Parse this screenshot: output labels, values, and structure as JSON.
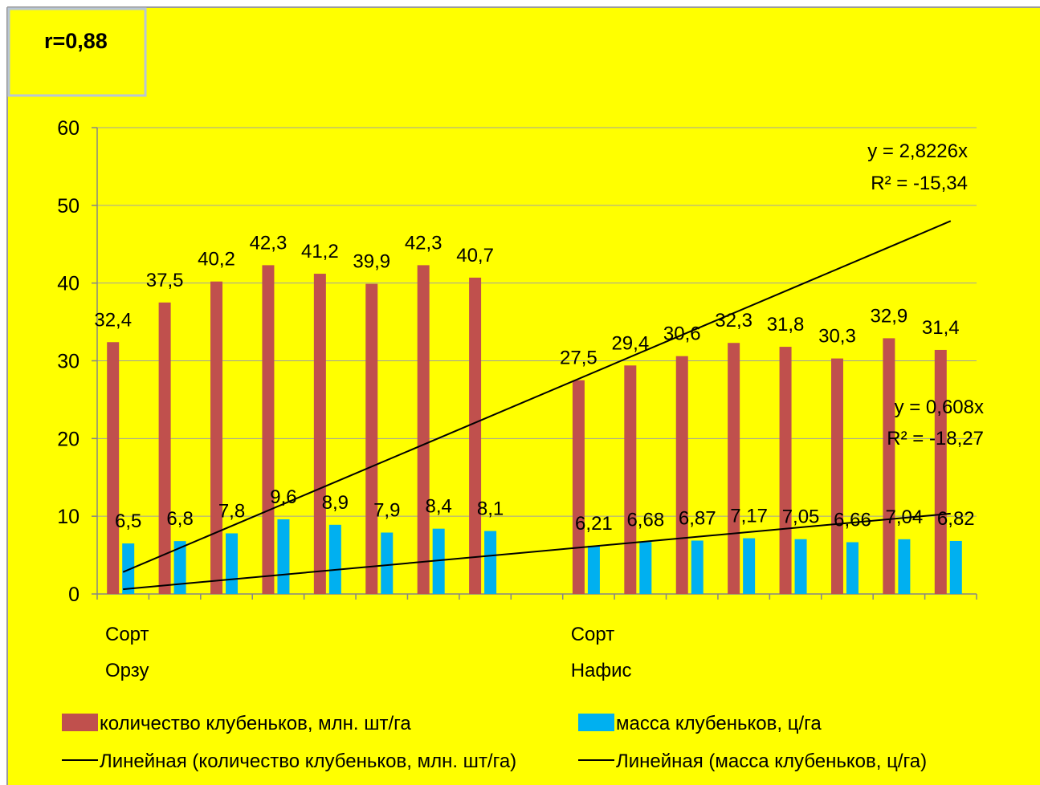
{
  "chart_data": {
    "type": "bar",
    "title": "",
    "corner_box_text": "r=0,88",
    "categories": [
      "",
      "",
      "",
      "",
      "",
      "",
      "",
      "",
      "",
      "",
      "",
      "",
      "",
      "",
      "",
      "",
      ""
    ],
    "group_labels": [
      {
        "line1": "Сорт",
        "line2": "Орзу",
        "start_index": 0
      },
      {
        "line1": "Сорт",
        "line2": "Нафис",
        "start_index": 9
      }
    ],
    "ylim": [
      0,
      60
    ],
    "yticks": [
      "0",
      "10",
      "20",
      "30",
      "40",
      "50",
      "60"
    ],
    "grid": true,
    "legend_position": "bottom",
    "series": [
      {
        "name": "количество клубеньков, млн. шт/га",
        "color": "#C0504D",
        "values": [
          32.4,
          37.5,
          40.2,
          42.3,
          41.2,
          39.9,
          42.3,
          40.7,
          null,
          27.5,
          29.4,
          30.6,
          32.3,
          31.8,
          30.3,
          32.9,
          31.4
        ],
        "labels": [
          "32,4",
          "37,5",
          "40,2",
          "42,3",
          "41,2",
          "39,9",
          "42,3",
          "40,7",
          "",
          "27,5",
          "29,4",
          "30,6",
          "32,3",
          "31,8",
          "30,3",
          "32,9",
          "31,4"
        ]
      },
      {
        "name": "масса клубеньков, ц/га",
        "color": "#00B0F0",
        "values": [
          6.5,
          6.8,
          7.8,
          9.6,
          8.9,
          7.9,
          8.4,
          8.1,
          null,
          6.21,
          6.68,
          6.87,
          7.17,
          7.05,
          6.66,
          7.04,
          6.82
        ],
        "labels": [
          "6,5",
          "6,8",
          "7,8",
          "9,6",
          "8,9",
          "7,9",
          "8,4",
          "8,1",
          "",
          "6,21",
          "6,68",
          "6,87",
          "7,17",
          "7,05",
          "6,66",
          "7,04",
          "6,82"
        ]
      }
    ],
    "trendlines": [
      {
        "name": "Линейная (количество клубеньков, млн. шт/га)",
        "slope": 2.8226,
        "equation": "y = 2,8226x",
        "r2": "R² = -15,34"
      },
      {
        "name": "Линейная (масса клубеньков, ц/га)",
        "slope": 0.608,
        "equation": "y = 0,608x",
        "r2": "R² = -18,27"
      }
    ],
    "colors": {
      "background": "#FFFF00",
      "axis": "#868686",
      "grid": "#A0A0A0",
      "trend": "#000000"
    }
  }
}
